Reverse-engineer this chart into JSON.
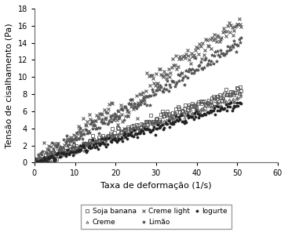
{
  "xlabel": "Taxa de deformação (1/s)",
  "ylabel": "Tensão de cisalhamento (Pa)",
  "xlim": [
    0,
    60
  ],
  "ylim": [
    0,
    18
  ],
  "xticks": [
    0,
    10,
    20,
    30,
    40,
    50,
    60
  ],
  "yticks": [
    0,
    2,
    4,
    6,
    8,
    10,
    12,
    14,
    16,
    18
  ],
  "series": [
    {
      "name": "Soja banana",
      "slope": 0.167,
      "noise_std": 0.3,
      "color": "#555555",
      "marker": "s",
      "ms": 2.2,
      "mfc": "none",
      "mew": 0.6,
      "seed": 10
    },
    {
      "name": "Creme",
      "slope": 0.153,
      "noise_std": 0.28,
      "color": "#555555",
      "marker": "^",
      "ms": 2.2,
      "mfc": "none",
      "mew": 0.6,
      "seed": 11
    },
    {
      "name": "Creme light",
      "slope": 0.328,
      "noise_std": 0.55,
      "color": "#555555",
      "marker": "x",
      "ms": 3.0,
      "mfc": "#555555",
      "mew": 0.8,
      "seed": 12,
      "has_dip": true
    },
    {
      "name": "Limão",
      "slope": 0.277,
      "noise_std": 0.5,
      "color": "#555555",
      "marker": "*",
      "ms": 3.0,
      "mfc": "#555555",
      "mew": 0.6,
      "seed": 13
    },
    {
      "name": "Iogurte",
      "slope": 0.138,
      "noise_std": 0.25,
      "color": "#222222",
      "marker": "o",
      "ms": 2.2,
      "mfc": "#222222",
      "mew": 0.5,
      "seed": 14
    }
  ],
  "legend_fontsize": 6.5,
  "axis_fontsize": 8,
  "tick_fontsize": 7,
  "background_color": "#ffffff",
  "figsize": [
    3.67,
    3.1
  ],
  "dpi": 100
}
